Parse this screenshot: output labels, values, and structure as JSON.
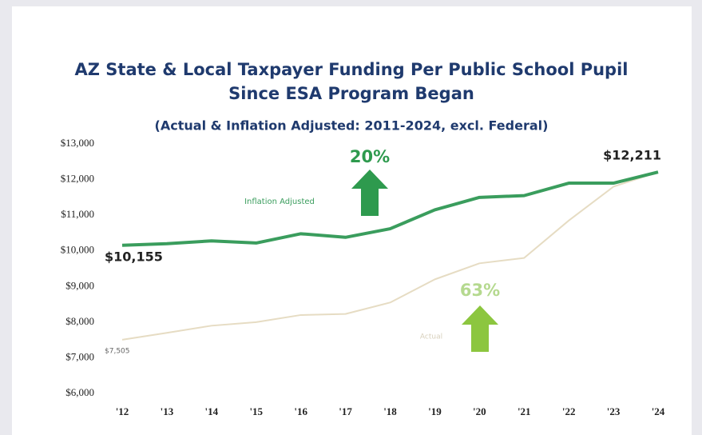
{
  "chart_data": {
    "type": "line",
    "title": "AZ State & Local Taxpayer Funding Per Public School Pupil",
    "title_line2": "Since ESA Program Began",
    "subtitle": "(Actual & Inflation Adjusted: 2011-2024, excl. Federal)",
    "categories": [
      "'12",
      "'13",
      "'14",
      "'15",
      "'16",
      "'17",
      "'18",
      "'19",
      "'20",
      "'21",
      "'22",
      "'23",
      "'24"
    ],
    "series": [
      {
        "name": "Inflation Adjusted",
        "color": "#3a9d5d",
        "values": [
          10155,
          10200,
          10280,
          10220,
          10480,
          10380,
          10620,
          11150,
          11500,
          11550,
          11900,
          11900,
          12211
        ],
        "value_labels": [
          "$10,155",
          null,
          null,
          null,
          null,
          null,
          null,
          null,
          null,
          null,
          null,
          null,
          "$12,211"
        ]
      },
      {
        "name": "Actual",
        "color": "#e6dcc3",
        "values": [
          7505,
          7700,
          7900,
          8000,
          8200,
          8230,
          8550,
          9200,
          9650,
          9800,
          10850,
          11800,
          12211
        ],
        "value_labels": [
          "$7,505",
          null,
          null,
          null,
          null,
          null,
          null,
          null,
          null,
          null,
          null,
          null,
          null
        ]
      }
    ],
    "annotations": [
      "20%",
      "63%"
    ],
    "ylim": [
      6000,
      13000
    ],
    "yticks": [
      {
        "value": 6000,
        "label": "$6,000"
      },
      {
        "value": 7000,
        "label": "$7,000"
      },
      {
        "value": 8000,
        "label": "$8,000"
      },
      {
        "value": 9000,
        "label": "$9,000"
      },
      {
        "value": 10000,
        "label": "$10,000"
      },
      {
        "value": 11000,
        "label": "$11,000"
      },
      {
        "value": 12000,
        "label": "$12,000"
      },
      {
        "value": 13000,
        "label": "$13,000"
      }
    ],
    "grid": false
  }
}
